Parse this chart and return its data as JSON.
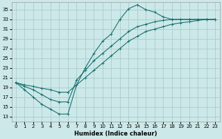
{
  "title": "",
  "xlabel": "Humidex (Indice chaleur)",
  "ylabel": "",
  "bg_color": "#cce8e8",
  "grid_color": "#aacccc",
  "line_color": "#1a7070",
  "xlim": [
    -0.5,
    23.5
  ],
  "ylim": [
    12,
    36.5
  ],
  "yticks": [
    13,
    15,
    17,
    19,
    21,
    23,
    25,
    27,
    29,
    31,
    33,
    35
  ],
  "xticks": [
    0,
    1,
    2,
    3,
    4,
    5,
    6,
    7,
    8,
    9,
    10,
    11,
    12,
    13,
    14,
    15,
    16,
    17,
    18,
    19,
    20,
    21,
    22,
    23
  ],
  "curve_tmax_x": [
    0,
    1,
    2,
    3,
    4,
    5,
    6,
    7,
    8,
    9,
    10,
    11,
    12,
    13,
    14,
    15,
    16,
    17,
    18,
    19,
    20,
    21,
    22,
    23
  ],
  "curve_tmax_y": [
    20,
    18.5,
    17,
    15.5,
    14.5,
    13.5,
    13.5,
    19.5,
    23,
    26,
    28.5,
    30,
    33,
    35.2,
    36,
    35.0,
    34.5,
    33.5,
    33,
    33,
    33,
    33,
    33,
    33
  ],
  "curve_tmoy_x": [
    0,
    1,
    2,
    3,
    4,
    5,
    6,
    7,
    8,
    9,
    10,
    11,
    12,
    13,
    14,
    15,
    16,
    17,
    18,
    19,
    20,
    21,
    22,
    23
  ],
  "curve_tmoy_y": [
    20,
    19.2,
    18.5,
    17.5,
    16.5,
    16.0,
    16.0,
    20.5,
    22.5,
    24.5,
    26.0,
    27.5,
    29.0,
    30.5,
    31.5,
    32.0,
    32.5,
    32.8,
    33,
    33,
    33,
    33,
    33,
    33
  ],
  "curve_tmin_x": [
    0,
    1,
    2,
    3,
    4,
    5,
    6,
    7,
    8,
    9,
    10,
    11,
    12,
    13,
    14,
    15,
    16,
    17,
    18,
    19,
    20,
    21,
    22,
    23
  ],
  "curve_tmin_y": [
    20,
    19.5,
    19.2,
    18.8,
    18.5,
    18.0,
    18.0,
    19.5,
    21.0,
    22.5,
    24.0,
    25.5,
    27.0,
    28.5,
    29.5,
    30.5,
    31.0,
    31.5,
    32.0,
    32.3,
    32.5,
    32.8,
    33,
    33
  ],
  "xlabel_fontsize": 6,
  "tick_fontsize": 5
}
